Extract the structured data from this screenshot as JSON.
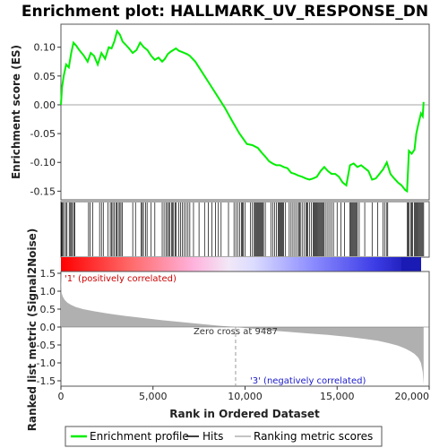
{
  "chart_data": [
    {
      "type": "line",
      "title": "Enrichment plot: HALLMARK_UV_RESPONSE_DN",
      "ylabel": "Enrichment score (ES)",
      "xlim": [
        0,
        20000
      ],
      "ylim": [
        -0.165,
        0.14
      ],
      "yticks": [
        -0.15,
        -0.1,
        -0.05,
        0.0,
        0.05,
        0.1
      ],
      "ytick_labels": [
        "-0.15",
        "-0.10",
        "-0.05",
        "0.00",
        "0.05",
        "0.10"
      ],
      "series": [
        {
          "name": "Enrichment profile",
          "color": "#00ee00",
          "x": [
            0,
            60,
            150,
            280,
            430,
            560,
            680,
            820,
            1000,
            1250,
            1450,
            1620,
            1800,
            2000,
            2200,
            2400,
            2600,
            2750,
            2900,
            3050,
            3200,
            3350,
            3500,
            3700,
            3900,
            4100,
            4300,
            4500,
            4700,
            4900,
            5100,
            5300,
            5500,
            5650,
            5800,
            5950,
            6100,
            6250,
            6400,
            6550,
            6700,
            6850,
            7000,
            7300,
            7700,
            8100,
            8500,
            8900,
            9300,
            9700,
            10100,
            10400,
            10700,
            10900,
            11100,
            11300,
            11500,
            11700,
            11900,
            12100,
            12300,
            12500,
            12700,
            12900,
            13100,
            13300,
            13500,
            13700,
            13900,
            14100,
            14300,
            14500,
            14700,
            14900,
            15100,
            15300,
            15500,
            15700,
            15900,
            16100,
            16300,
            16500,
            16700,
            16900,
            17100,
            17300,
            17500,
            17700,
            17900,
            18100,
            18300,
            18500,
            18700,
            18800,
            18900,
            19050,
            19200,
            19300,
            19400,
            19550,
            19650,
            19700
          ],
          "y": [
            0.0,
            0.03,
            0.05,
            0.07,
            0.065,
            0.09,
            0.108,
            0.103,
            0.095,
            0.085,
            0.075,
            0.09,
            0.085,
            0.07,
            0.09,
            0.08,
            0.1,
            0.098,
            0.11,
            0.128,
            0.122,
            0.11,
            0.105,
            0.098,
            0.09,
            0.095,
            0.108,
            0.1,
            0.095,
            0.085,
            0.078,
            0.082,
            0.075,
            0.08,
            0.088,
            0.092,
            0.095,
            0.098,
            0.094,
            0.092,
            0.09,
            0.088,
            0.085,
            0.075,
            0.055,
            0.035,
            0.015,
            -0.005,
            -0.028,
            -0.05,
            -0.068,
            -0.07,
            -0.075,
            -0.083,
            -0.09,
            -0.098,
            -0.102,
            -0.105,
            -0.105,
            -0.108,
            -0.11,
            -0.118,
            -0.12,
            -0.123,
            -0.125,
            -0.128,
            -0.13,
            -0.128,
            -0.125,
            -0.115,
            -0.108,
            -0.115,
            -0.12,
            -0.12,
            -0.125,
            -0.135,
            -0.14,
            -0.105,
            -0.102,
            -0.108,
            -0.105,
            -0.11,
            -0.115,
            -0.13,
            -0.128,
            -0.12,
            -0.112,
            -0.1,
            -0.12,
            -0.128,
            -0.135,
            -0.14,
            -0.148,
            -0.15,
            -0.08,
            -0.085,
            -0.078,
            -0.05,
            -0.035,
            -0.015,
            -0.02,
            0.005
          ]
        }
      ],
      "hits": [
        30,
        60,
        100,
        180,
        260,
        330,
        450,
        520,
        580,
        620,
        700,
        760,
        1500,
        1580,
        1720,
        2100,
        2200,
        2300,
        2550,
        2680,
        2750,
        2820,
        2900,
        3000,
        3050,
        3120,
        3200,
        3260,
        3330,
        3900,
        4050,
        4350,
        4420,
        4480,
        4600,
        4680,
        4900,
        5100,
        5500,
        5600,
        5700,
        5780,
        5850,
        5900,
        6000,
        6050,
        6120,
        6200,
        6250,
        6400,
        6500,
        6600,
        6700,
        6800,
        6900,
        7000,
        7200,
        7500,
        7800,
        8000,
        8200,
        8400,
        8550,
        8700,
        9100,
        9400,
        9500,
        9600,
        9700,
        9800,
        9850,
        9900,
        10000,
        10300,
        10400,
        10500,
        10550,
        10600,
        10650,
        10700,
        10750,
        10800,
        10850,
        10900,
        10950,
        11000,
        11100,
        11400,
        11500,
        11600,
        11700,
        11800,
        11850,
        11900,
        11950,
        12000,
        12050,
        12100,
        12200,
        12400,
        12500,
        12600,
        12700,
        12800,
        12900,
        12950,
        13000,
        13100,
        13200,
        13300,
        13350,
        13400,
        13500,
        13600,
        13700,
        13750,
        13800,
        13850,
        13900,
        13950,
        14000,
        14050,
        14100,
        14150,
        14200,
        14250,
        14300,
        14400,
        14500,
        14600,
        14700,
        14800,
        15000,
        15200,
        15400,
        15700,
        15750,
        15800,
        15850,
        15900,
        15950,
        16000,
        16050,
        16100,
        16200,
        16500,
        16900,
        17200,
        17500,
        17600,
        17700,
        17750,
        18800,
        18850,
        18900,
        19000,
        19050,
        19100,
        19200,
        19250,
        19300,
        19350,
        19400,
        19450,
        19500,
        19550,
        19600,
        19650,
        19700
      ]
    },
    {
      "type": "area",
      "xlabel": "Rank in Ordered Dataset",
      "ylabel": "Ranked list metric (Signal2Noise)",
      "xlim": [
        0,
        20000
      ],
      "ylim": [
        -1.65,
        1.55
      ],
      "yticks": [
        -1.5,
        -1.0,
        -0.5,
        0.0,
        0.5,
        1.0,
        1.5
      ],
      "ytick_labels": [
        "-1.5",
        "-1.0",
        "-0.5",
        "0.0",
        "0.5",
        "1.0",
        "1.5"
      ],
      "xticks": [
        0,
        5000,
        10000,
        15000,
        20000
      ],
      "xtick_labels": [
        "0",
        "5,000",
        "10,000",
        "15,000",
        "20,000"
      ],
      "series": [
        {
          "name": "Ranking metric scores",
          "color": "#b0b0b0",
          "x": [
            0,
            40,
            100,
            200,
            350,
            550,
            800,
            1200,
            1800,
            2500,
            3500,
            4500,
            5500,
            6500,
            7500,
            8500,
            9487,
            10500,
            11500,
            12500,
            13500,
            14500,
            15500,
            16500,
            17200,
            17800,
            18300,
            18700,
            19000,
            19200,
            19400,
            19550,
            19650,
            19700
          ],
          "y": [
            1.55,
            0.95,
            0.85,
            0.76,
            0.68,
            0.62,
            0.56,
            0.5,
            0.44,
            0.38,
            0.31,
            0.25,
            0.19,
            0.14,
            0.09,
            0.04,
            0.0,
            -0.05,
            -0.1,
            -0.14,
            -0.18,
            -0.22,
            -0.27,
            -0.33,
            -0.38,
            -0.45,
            -0.52,
            -0.6,
            -0.68,
            -0.75,
            -0.85,
            -1.0,
            -1.25,
            -1.6
          ]
        }
      ],
      "annotations": {
        "positive": "'1' (positively correlated)",
        "negative": "'3' (negatively correlated)",
        "zero_cross": "Zero cross at 9487",
        "zero_cross_x": 9487
      }
    }
  ],
  "colors": {
    "es_line": "#00ee00",
    "positive_label": "#cc0000",
    "negative_label": "#1a1acc",
    "metric_fill": "#b0b0b0",
    "zero_line": "#808080"
  },
  "legend": {
    "items": [
      {
        "label": "Enrichment profile",
        "color": "#00ee00"
      },
      {
        "label": "Hits",
        "color": "#000000"
      },
      {
        "label": "Ranking metric scores",
        "color": "#b0b0b0"
      }
    ]
  }
}
